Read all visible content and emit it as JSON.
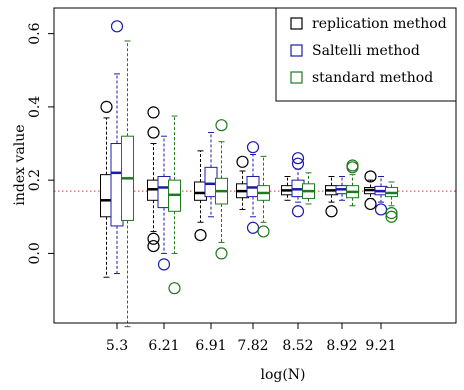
{
  "chart_data": {
    "type": "boxplot",
    "xlabel": "log(N)",
    "ylabel": "index value",
    "categories": [
      "5.3",
      "6.21",
      "6.91",
      "7.82",
      "8.52",
      "8.92",
      "9.21"
    ],
    "ylim": [
      -0.19,
      0.67
    ],
    "yticks": [
      0.0,
      0.2,
      0.4,
      0.6
    ],
    "ytick_labels": [
      "0.0",
      "0.2",
      "0.4",
      "0.6"
    ],
    "reference_line": {
      "y": 0.17,
      "style": "dotted",
      "color": "#e4393a"
    },
    "legend": {
      "position": "top-right",
      "entries": [
        "replication method",
        "Saltelli method",
        "standard method"
      ]
    },
    "series": [
      {
        "name": "replication method",
        "color": "#000000",
        "boxes": [
          {
            "whisker_low": -0.065,
            "q1": 0.1,
            "median": 0.145,
            "q3": 0.215,
            "whisker_high": 0.37,
            "outliers": [
              0.4
            ]
          },
          {
            "whisker_low": 0.06,
            "q1": 0.145,
            "median": 0.175,
            "q3": 0.2,
            "whisker_high": 0.3,
            "outliers": [
              0.385,
              0.33,
              0.04,
              0.02
            ]
          },
          {
            "whisker_low": 0.085,
            "q1": 0.145,
            "median": 0.165,
            "q3": 0.195,
            "whisker_high": 0.28,
            "outliers": [
              0.05
            ]
          },
          {
            "whisker_low": 0.12,
            "q1": 0.152,
            "median": 0.17,
            "q3": 0.19,
            "whisker_high": 0.225,
            "outliers": [
              0.25
            ]
          },
          {
            "whisker_low": 0.145,
            "q1": 0.16,
            "median": 0.172,
            "q3": 0.185,
            "whisker_high": 0.21,
            "outliers": []
          },
          {
            "whisker_low": 0.14,
            "q1": 0.16,
            "median": 0.172,
            "q3": 0.185,
            "whisker_high": 0.21,
            "outliers": [
              0.115
            ]
          },
          {
            "whisker_low": 0.15,
            "q1": 0.163,
            "median": 0.173,
            "q3": 0.18,
            "whisker_high": 0.2,
            "outliers": [
              0.21,
              0.135
            ]
          }
        ]
      },
      {
        "name": "Saltelli method",
        "color": "#1b1baa",
        "boxes": [
          {
            "whisker_low": -0.055,
            "q1": 0.075,
            "median": 0.22,
            "q3": 0.3,
            "whisker_high": 0.49,
            "outliers": [
              0.62
            ]
          },
          {
            "whisker_low": 0.0,
            "q1": 0.125,
            "median": 0.18,
            "q3": 0.21,
            "whisker_high": 0.32,
            "outliers": [
              -0.03
            ]
          },
          {
            "whisker_low": 0.1,
            "q1": 0.155,
            "median": 0.19,
            "q3": 0.235,
            "whisker_high": 0.33,
            "outliers": []
          },
          {
            "whisker_low": 0.1,
            "q1": 0.155,
            "median": 0.18,
            "q3": 0.21,
            "whisker_high": 0.27,
            "outliers": [
              0.29,
              0.07
            ]
          },
          {
            "whisker_low": 0.14,
            "q1": 0.155,
            "median": 0.175,
            "q3": 0.2,
            "whisker_high": 0.23,
            "outliers": [
              0.26,
              0.245,
              0.115
            ]
          },
          {
            "whisker_low": 0.145,
            "q1": 0.163,
            "median": 0.175,
            "q3": 0.185,
            "whisker_high": 0.21,
            "outliers": []
          },
          {
            "whisker_low": 0.14,
            "q1": 0.16,
            "median": 0.17,
            "q3": 0.183,
            "whisker_high": 0.21,
            "outliers": [
              0.12
            ]
          }
        ]
      },
      {
        "name": "standard method",
        "color": "#1f7a1f",
        "boxes": [
          {
            "whisker_low": -0.2,
            "q1": 0.09,
            "median": 0.205,
            "q3": 0.32,
            "whisker_high": 0.58,
            "outliers": []
          },
          {
            "whisker_low": 0.0,
            "q1": 0.115,
            "median": 0.16,
            "q3": 0.2,
            "whisker_high": 0.375,
            "outliers": [
              -0.095
            ]
          },
          {
            "whisker_low": 0.03,
            "q1": 0.135,
            "median": 0.17,
            "q3": 0.205,
            "whisker_high": 0.305,
            "outliers": [
              0.35,
              0.0
            ]
          },
          {
            "whisker_low": 0.085,
            "q1": 0.145,
            "median": 0.165,
            "q3": 0.185,
            "whisker_high": 0.265,
            "outliers": [
              0.06
            ]
          },
          {
            "whisker_low": 0.135,
            "q1": 0.15,
            "median": 0.17,
            "q3": 0.19,
            "whisker_high": 0.22,
            "outliers": []
          },
          {
            "whisker_low": 0.13,
            "q1": 0.152,
            "median": 0.168,
            "q3": 0.185,
            "whisker_high": 0.215,
            "outliers": [
              0.235,
              0.24
            ]
          },
          {
            "whisker_low": 0.13,
            "q1": 0.155,
            "median": 0.165,
            "q3": 0.18,
            "whisker_high": 0.195,
            "outliers": [
              0.11,
              0.1
            ]
          }
        ]
      }
    ]
  }
}
